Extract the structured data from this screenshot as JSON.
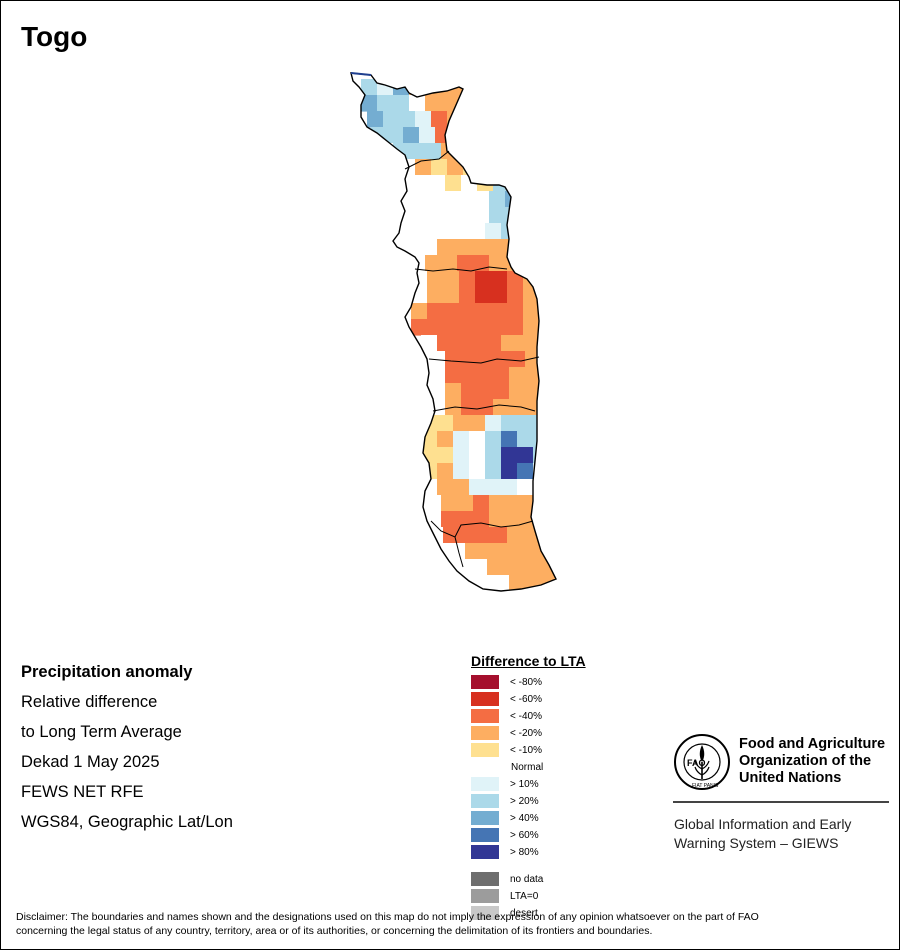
{
  "title": "Togo",
  "info": {
    "line1": "Precipitation anomaly",
    "line2": "Relative difference",
    "line3": "to Long Term Average",
    "line4": "Dekad 1 May 2025",
    "line5": "FEWS NET RFE",
    "line6": "WGS84, Geographic Lat/Lon"
  },
  "legend": {
    "title": "Difference to LTA",
    "classes": [
      {
        "label": "< -80%",
        "color": "#a50f2d"
      },
      {
        "label": "< -60%",
        "color": "#d7301f"
      },
      {
        "label": "< -40%",
        "color": "#f46d43"
      },
      {
        "label": "< -20%",
        "color": "#fdae61"
      },
      {
        "label": "< -10%",
        "color": "#fee090"
      },
      {
        "label": "Normal",
        "color": "#ffffff"
      },
      {
        "label": "> 10%",
        "color": "#e0f3f8"
      },
      {
        "label": "> 20%",
        "color": "#abd9e9"
      },
      {
        "label": "> 40%",
        "color": "#74add1"
      },
      {
        "label": "> 60%",
        "color": "#4575b4"
      },
      {
        "label": "> 80%",
        "color": "#313695"
      }
    ],
    "extra": [
      {
        "label": "no data",
        "color": "#6e6e6e"
      },
      {
        "label": "LTA=0",
        "color": "#9c9c9c"
      },
      {
        "label": "desert",
        "color": "#c8c8c8"
      }
    ]
  },
  "org": {
    "name_line1": "Food and Agriculture",
    "name_line2": "Organization of the",
    "name_line3": "United Nations",
    "logo_text": "FAO",
    "logo_motto": "FIAT PANIS",
    "system_line1": "Global Information and Early",
    "system_line2": "Warning System – GIEWS"
  },
  "disclaimer_line1": "Disclaimer: The boundaries and names shown and the designations used on this map do not imply the expression of any opinion whatsoever on the part of FAO",
  "disclaimer_line2": "concerning the legal status of any country, territory, area or of its authorities, or concerning the delimitation of its frontiers and boundaries.",
  "map_grid": {
    "palette": {
      "N": "#ffffff",
      "a": "#fee090",
      "b": "#fdae61",
      "c": "#f46d43",
      "d": "#d7301f",
      "1": "#e0f3f8",
      "2": "#abd9e9",
      "3": "#74add1",
      "4": "#4575b4",
      "5": "#313695"
    },
    "rows": [
      "213bbbbb",
      "322Nbbbb",
      "3221cbbb",
      "2231cdbb",
      "N222bcaa",
      "NNbabaa1",
      "NNNaNa22",
      "NNNNN234",
      "NNNNN223",
      "NNNNN1231",
      "NNbbbbbb21",
      "NbbccbbN13",
      "Nbbcddcbb23",
      "Nbbcddcbb14",
      "bccccccbb34",
      "cccccccbb12",
      "Nccccbbbb1",
      "Ncccccbbbb",
      "Nccccbbbbb",
      "Nbcccbbbbb",
      "Nbccbbbbbb",
      "aabb1222ab",
      "ab1N2422bc",
      "aa1N2552bc",
      "ab1N2541bc",
      "Nbb111NNbb",
      "Nbbcbbbb1b",
      "Ncccbbbbbb",
      "Nccccbbbbb",
      "NNbbbbbbbbb",
      "NNNbbbbbbccc",
      "NNNNbbbbbcdc",
      "NNNNNNbbbbcd"
    ],
    "row_starts": [
      360,
      360,
      366,
      370,
      376,
      382,
      396,
      408,
      408,
      404,
      404,
      408,
      410,
      410,
      410,
      410,
      420,
      428,
      428,
      428,
      428,
      420,
      420,
      420,
      420,
      420,
      424,
      424,
      426,
      432,
      438,
      444,
      450
    ]
  }
}
